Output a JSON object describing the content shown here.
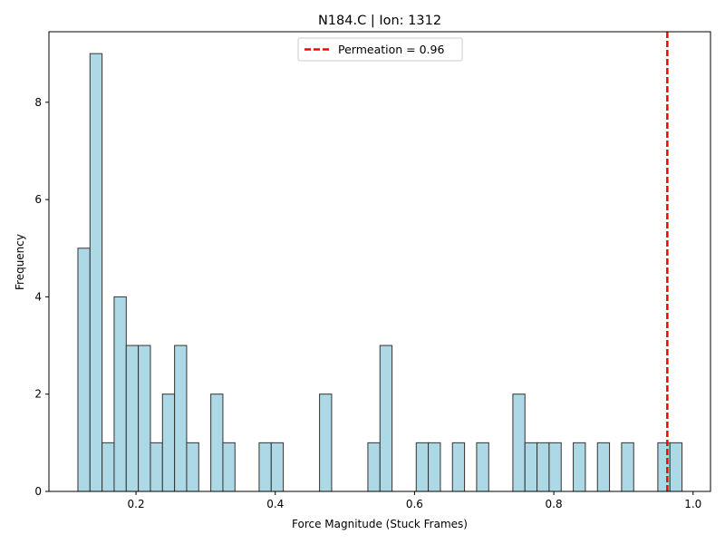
{
  "chart_data": {
    "type": "bar",
    "title": "N184.C | Ion: 1312",
    "xlabel": "Force Magnitude (Stuck Frames)",
    "ylabel": "Frequency",
    "xlim": [
      0.075,
      1.025
    ],
    "ylim": [
      0,
      9.45
    ],
    "xticks": [
      0.2,
      0.4,
      0.6,
      0.8,
      1.0
    ],
    "xtick_labels": [
      "0.2",
      "0.4",
      "0.6",
      "0.8",
      "1.0"
    ],
    "yticks": [
      0,
      2,
      4,
      6,
      8
    ],
    "ytick_labels": [
      "0",
      "2",
      "4",
      "6",
      "8"
    ],
    "grid": false,
    "bin_start": 0.1166,
    "bin_width": 0.01735,
    "counts": [
      5,
      9,
      1,
      4,
      3,
      3,
      1,
      2,
      3,
      1,
      0,
      2,
      1,
      0,
      0,
      1,
      1,
      0,
      0,
      0,
      2,
      0,
      0,
      0,
      1,
      3,
      0,
      0,
      1,
      1,
      0,
      1,
      0,
      1,
      0,
      0,
      2,
      1,
      1,
      1,
      0,
      1,
      0,
      1,
      0,
      1,
      0,
      0,
      1,
      1
    ],
    "bar_color": "#add8e6",
    "bar_edge_color": "#333333",
    "vline": {
      "x": 0.963,
      "color": "#ff0000",
      "style": "dashed",
      "label": "Permeation = 0.96"
    },
    "legend": {
      "position": "top-center",
      "entries": [
        "Permeation = 0.96"
      ]
    }
  }
}
